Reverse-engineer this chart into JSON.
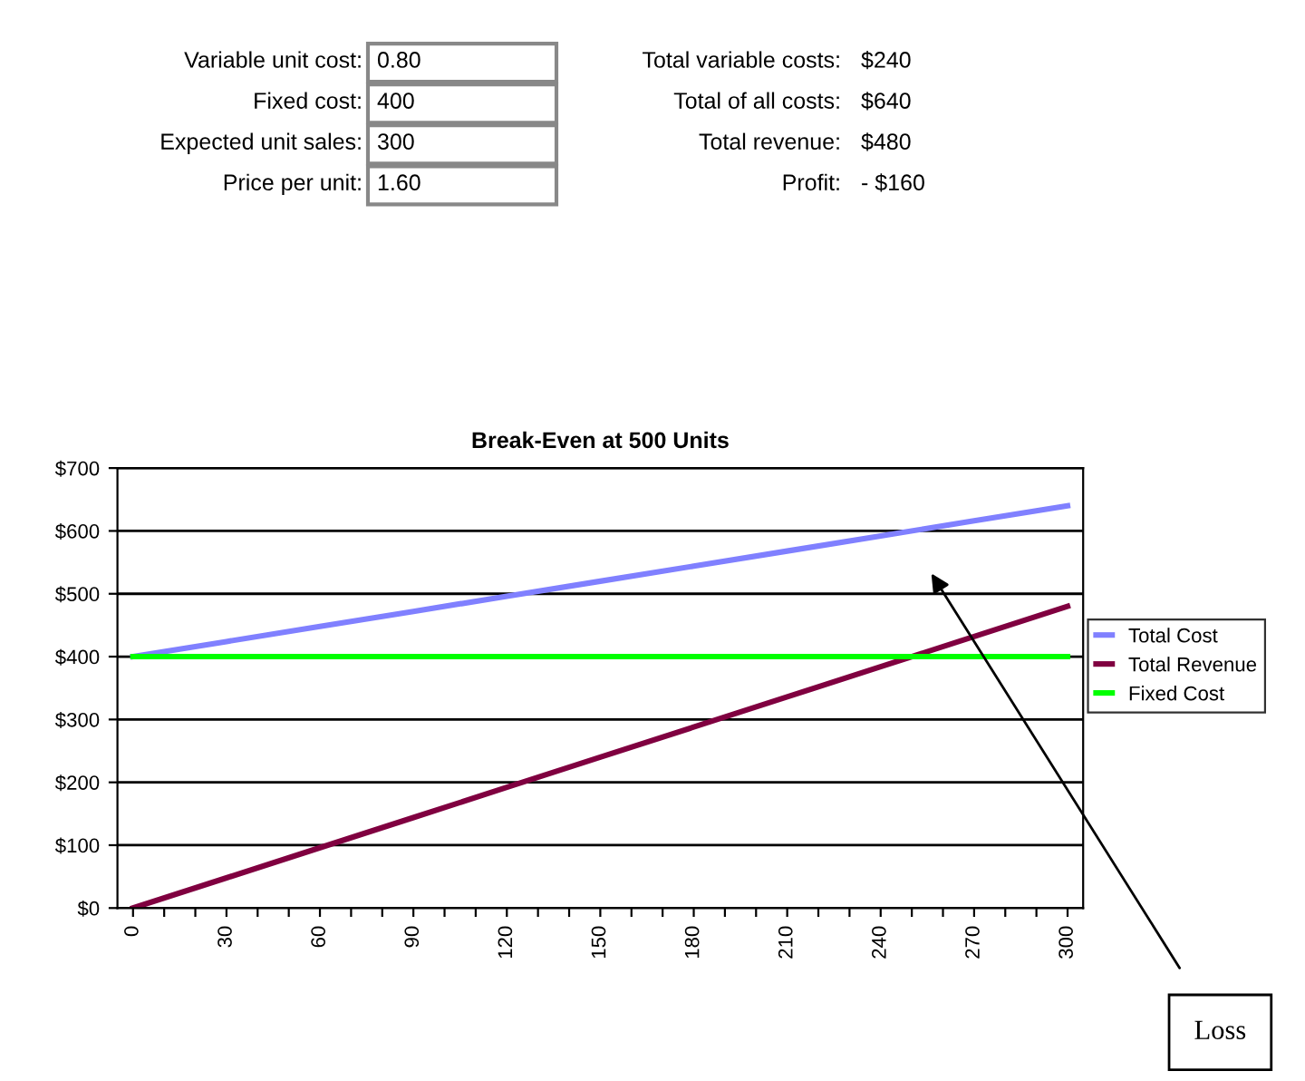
{
  "chart_data": [
    {
      "type": "other",
      "annotations": [
        "Variable unit cost:",
        "0.80",
        "Total variable costs:",
        "$240",
        "Fixed cost:",
        "400",
        "Total of all costs:",
        "$640",
        "Expected unit sales:",
        "300",
        "Total revenue:",
        "$480",
        "Price per unit:",
        "1.60",
        "Profit:",
        "- $160"
      ]
    },
    {
      "type": "line",
      "title": "Break-Even at 500 Units",
      "x": [
        0,
        30,
        60,
        90,
        120,
        150,
        180,
        210,
        240,
        270,
        300
      ],
      "series": [
        {
          "name": "Total Cost",
          "color": "#8080ff",
          "values": [
            400,
            424,
            448,
            472,
            496,
            520,
            544,
            568,
            592,
            616,
            640
          ]
        },
        {
          "name": "Total Revenue",
          "color": "#800040",
          "values": [
            0,
            48,
            96,
            144,
            192,
            240,
            288,
            336,
            384,
            432,
            480
          ]
        },
        {
          "name": "Fixed Cost",
          "color": "#00ff00",
          "values": [
            400,
            400,
            400,
            400,
            400,
            400,
            400,
            400,
            400,
            400,
            400
          ]
        }
      ],
      "xlim": [
        -5,
        305
      ],
      "xticks": [
        0,
        {
          "value": 10,
          "label": null
        },
        {
          "value": 20,
          "label": null
        },
        30,
        {
          "value": 40,
          "label": null
        },
        {
          "value": 50,
          "label": null
        },
        60,
        {
          "value": 70,
          "label": null
        },
        {
          "value": 80,
          "label": null
        },
        90,
        {
          "value": 100,
          "label": null
        },
        {
          "value": 110,
          "label": null
        },
        120,
        {
          "value": 130,
          "label": null
        },
        {
          "value": 140,
          "label": null
        },
        150,
        {
          "value": 160,
          "label": null
        },
        {
          "value": 170,
          "label": null
        },
        180,
        {
          "value": 190,
          "label": null
        },
        {
          "value": 200,
          "label": null
        },
        210,
        {
          "value": 220,
          "label": null
        },
        {
          "value": 230,
          "label": null
        },
        240,
        {
          "value": 250,
          "label": null
        },
        {
          "value": 260,
          "label": null
        },
        270,
        {
          "value": 280,
          "label": null
        },
        {
          "value": 290,
          "label": null
        },
        300
      ],
      "ylim": [
        0,
        700
      ],
      "yticks": [
        {
          "value": 0,
          "label": "$0"
        },
        {
          "value": 100,
          "label": "$100"
        },
        {
          "value": 200,
          "label": "$200"
        },
        {
          "value": 300,
          "label": "$300"
        },
        {
          "value": 400,
          "label": "$400"
        },
        {
          "value": 500,
          "label": "$500"
        },
        {
          "value": 600,
          "label": "$600"
        },
        {
          "value": 700,
          "label": "$700"
        }
      ],
      "grid": "y",
      "legend": "right",
      "marker": "none",
      "line_style": "solid",
      "annotations": [
        "Loss"
      ]
    }
  ]
}
